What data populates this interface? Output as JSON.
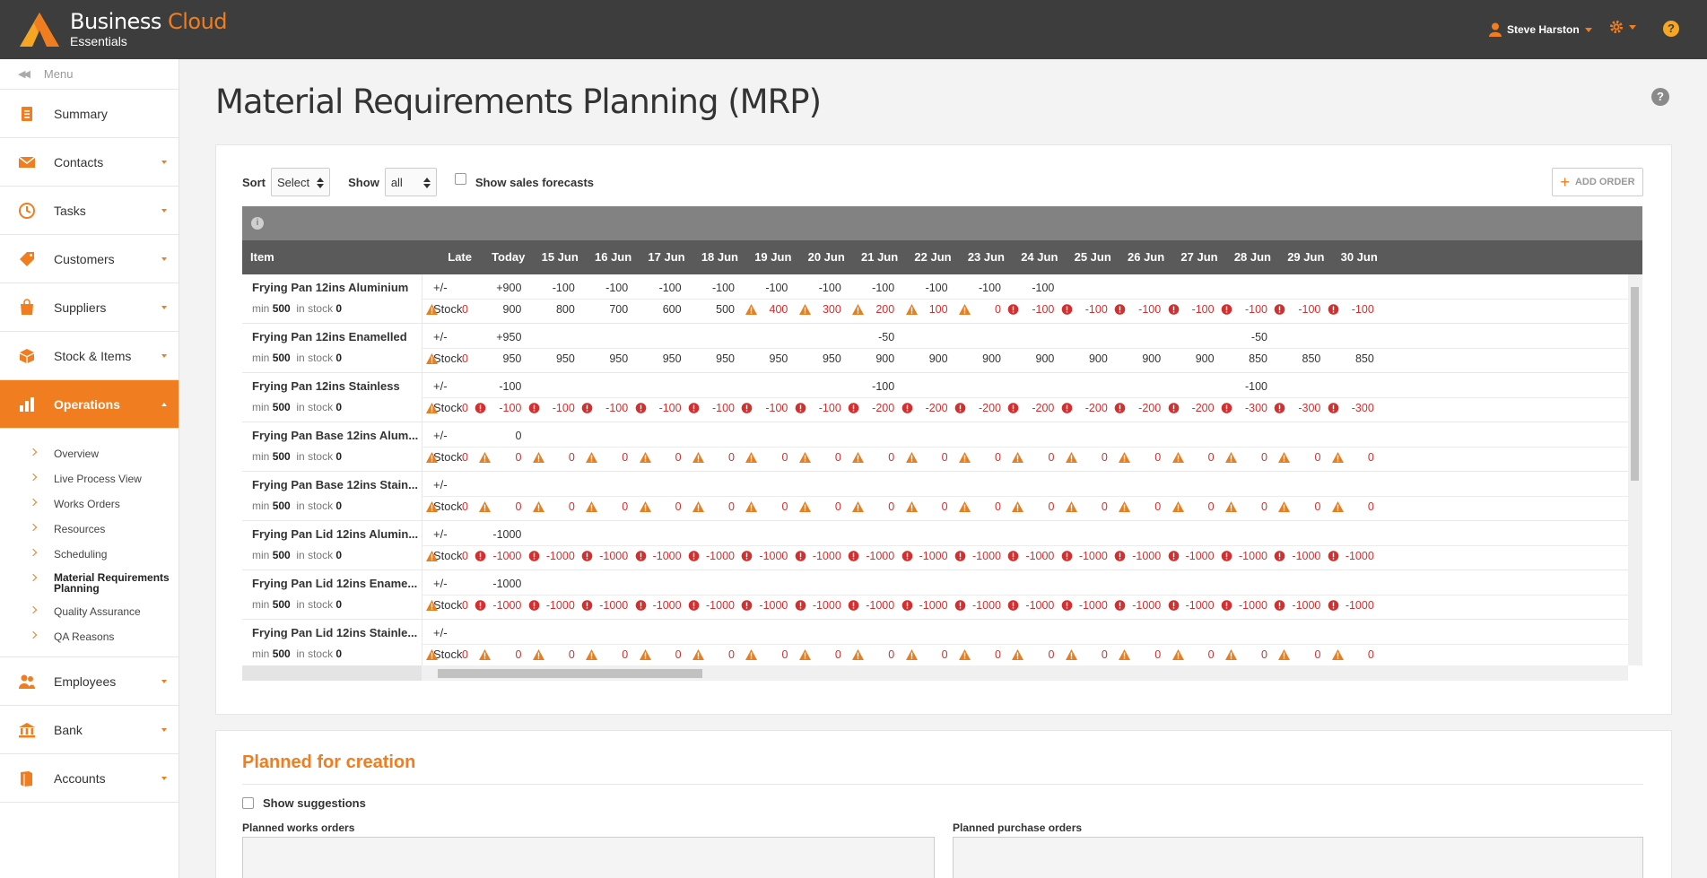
{
  "brand": {
    "name_part1": "Business",
    "name_part2": "Cloud",
    "subtitle": "Essentials"
  },
  "user": {
    "name": "Steve Harston"
  },
  "sidebar": {
    "menu_label": "Menu",
    "items": [
      {
        "label": "Summary",
        "icon": "summary-icon",
        "expandable": false
      },
      {
        "label": "Contacts",
        "icon": "envelope-icon",
        "expandable": true
      },
      {
        "label": "Tasks",
        "icon": "clock-icon",
        "expandable": true
      },
      {
        "label": "Customers",
        "icon": "tag-icon",
        "expandable": true
      },
      {
        "label": "Suppliers",
        "icon": "bag-icon",
        "expandable": true
      },
      {
        "label": "Stock & Items",
        "icon": "box-icon",
        "expandable": true
      },
      {
        "label": "Operations",
        "icon": "bar-chart-icon",
        "expandable": true,
        "active": true
      },
      {
        "label": "Employees",
        "icon": "people-icon",
        "expandable": true
      },
      {
        "label": "Bank",
        "icon": "bank-icon",
        "expandable": true
      },
      {
        "label": "Accounts",
        "icon": "book-icon",
        "expandable": true
      }
    ],
    "operations_sub": [
      "Overview",
      "Live Process View",
      "Works Orders",
      "Resources",
      "Scheduling",
      "Material Requirements Planning",
      "Quality Assurance",
      "QA Reasons"
    ],
    "current_sub": "Material Requirements Planning"
  },
  "page": {
    "title": "Material Requirements Planning (MRP)"
  },
  "controls": {
    "sort_label": "Sort",
    "sort_value": "Select",
    "show_label": "Show",
    "show_value": "all",
    "forecast_label": "Show sales forecasts",
    "add_order_label": "ADD ORDER"
  },
  "grid": {
    "headers": [
      "Item",
      "Late",
      "Today",
      "15 Jun",
      "16 Jun",
      "17 Jun",
      "18 Jun",
      "19 Jun",
      "20 Jun",
      "21 Jun",
      "22 Jun",
      "23 Jun",
      "24 Jun",
      "25 Jun",
      "26 Jun",
      "27 Jun",
      "28 Jun",
      "29 Jun",
      "30 Jun"
    ],
    "min_label": "min",
    "instock_label": "in stock",
    "pm_label": "+/-",
    "stock_label": "Stock",
    "rows": [
      {
        "name": "Frying Pan 12ins Aluminium",
        "min": "500",
        "in_stock": "0",
        "pm": [
          "",
          "+900",
          "-100",
          "-100",
          "-100",
          "-100",
          "-100",
          "-100",
          "-100",
          "-100",
          "-100",
          "-100",
          "",
          "",
          "",
          "",
          "",
          ""
        ],
        "stock": [
          [
            "warn",
            "0"
          ],
          [
            "",
            "900"
          ],
          [
            "",
            "800"
          ],
          [
            "",
            "700"
          ],
          [
            "",
            "600"
          ],
          [
            "",
            "500"
          ],
          [
            "warn",
            "400"
          ],
          [
            "warn",
            "300"
          ],
          [
            "warn",
            "200"
          ],
          [
            "warn",
            "100"
          ],
          [
            "warn",
            "0"
          ],
          [
            "err",
            "-100"
          ],
          [
            "err",
            "-100"
          ],
          [
            "err",
            "-100"
          ],
          [
            "err",
            "-100"
          ],
          [
            "err",
            "-100"
          ],
          [
            "err",
            "-100"
          ],
          [
            "err",
            "-100"
          ]
        ]
      },
      {
        "name": "Frying Pan 12ins Enamelled",
        "min": "500",
        "in_stock": "0",
        "pm": [
          "",
          "+950",
          "",
          "",
          "",
          "",
          "",
          "",
          "-50",
          "",
          "",
          "",
          "",
          "",
          "",
          "-50",
          "",
          ""
        ],
        "stock": [
          [
            "warn",
            "0"
          ],
          [
            "",
            "950"
          ],
          [
            "",
            "950"
          ],
          [
            "",
            "950"
          ],
          [
            "",
            "950"
          ],
          [
            "",
            "950"
          ],
          [
            "",
            "950"
          ],
          [
            "",
            "950"
          ],
          [
            "",
            "900"
          ],
          [
            "",
            "900"
          ],
          [
            "",
            "900"
          ],
          [
            "",
            "900"
          ],
          [
            "",
            "900"
          ],
          [
            "",
            "900"
          ],
          [
            "",
            "900"
          ],
          [
            "",
            "850"
          ],
          [
            "",
            "850"
          ],
          [
            "",
            "850"
          ]
        ]
      },
      {
        "name": "Frying Pan 12ins Stainless",
        "min": "500",
        "in_stock": "0",
        "pm": [
          "",
          "-100",
          "",
          "",
          "",
          "",
          "",
          "",
          "-100",
          "",
          "",
          "",
          "",
          "",
          "",
          "-100",
          "",
          ""
        ],
        "stock": [
          [
            "warn",
            "0"
          ],
          [
            "err",
            "-100"
          ],
          [
            "err",
            "-100"
          ],
          [
            "err",
            "-100"
          ],
          [
            "err",
            "-100"
          ],
          [
            "err",
            "-100"
          ],
          [
            "err",
            "-100"
          ],
          [
            "err",
            "-100"
          ],
          [
            "err",
            "-200"
          ],
          [
            "err",
            "-200"
          ],
          [
            "err",
            "-200"
          ],
          [
            "err",
            "-200"
          ],
          [
            "err",
            "-200"
          ],
          [
            "err",
            "-200"
          ],
          [
            "err",
            "-200"
          ],
          [
            "err",
            "-300"
          ],
          [
            "err",
            "-300"
          ],
          [
            "err",
            "-300"
          ]
        ]
      },
      {
        "name": "Frying Pan Base 12ins Alum...",
        "min": "500",
        "in_stock": "0",
        "pm": [
          "",
          "0",
          "",
          "",
          "",
          "",
          "",
          "",
          "",
          "",
          "",
          "",
          "",
          "",
          "",
          "",
          "",
          ""
        ],
        "stock": [
          [
            "warn",
            "0"
          ],
          [
            "warn",
            "0"
          ],
          [
            "warn",
            "0"
          ],
          [
            "warn",
            "0"
          ],
          [
            "warn",
            "0"
          ],
          [
            "warn",
            "0"
          ],
          [
            "warn",
            "0"
          ],
          [
            "warn",
            "0"
          ],
          [
            "warn",
            "0"
          ],
          [
            "warn",
            "0"
          ],
          [
            "warn",
            "0"
          ],
          [
            "warn",
            "0"
          ],
          [
            "warn",
            "0"
          ],
          [
            "warn",
            "0"
          ],
          [
            "warn",
            "0"
          ],
          [
            "warn",
            "0"
          ],
          [
            "warn",
            "0"
          ],
          [
            "warn",
            "0"
          ]
        ]
      },
      {
        "name": "Frying Pan Base 12ins Stain...",
        "min": "500",
        "in_stock": "0",
        "pm": [
          "",
          "",
          "",
          "",
          "",
          "",
          "",
          "",
          "",
          "",
          "",
          "",
          "",
          "",
          "",
          "",
          "",
          ""
        ],
        "stock": [
          [
            "warn",
            "0"
          ],
          [
            "warn",
            "0"
          ],
          [
            "warn",
            "0"
          ],
          [
            "warn",
            "0"
          ],
          [
            "warn",
            "0"
          ],
          [
            "warn",
            "0"
          ],
          [
            "warn",
            "0"
          ],
          [
            "warn",
            "0"
          ],
          [
            "warn",
            "0"
          ],
          [
            "warn",
            "0"
          ],
          [
            "warn",
            "0"
          ],
          [
            "warn",
            "0"
          ],
          [
            "warn",
            "0"
          ],
          [
            "warn",
            "0"
          ],
          [
            "warn",
            "0"
          ],
          [
            "warn",
            "0"
          ],
          [
            "warn",
            "0"
          ],
          [
            "warn",
            "0"
          ]
        ]
      },
      {
        "name": "Frying Pan Lid 12ins Alumin...",
        "min": "500",
        "in_stock": "0",
        "pm": [
          "",
          "-1000",
          "",
          "",
          "",
          "",
          "",
          "",
          "",
          "",
          "",
          "",
          "",
          "",
          "",
          "",
          "",
          ""
        ],
        "stock": [
          [
            "warn",
            "0"
          ],
          [
            "err",
            "-1000"
          ],
          [
            "err",
            "-1000"
          ],
          [
            "err",
            "-1000"
          ],
          [
            "err",
            "-1000"
          ],
          [
            "err",
            "-1000"
          ],
          [
            "err",
            "-1000"
          ],
          [
            "err",
            "-1000"
          ],
          [
            "err",
            "-1000"
          ],
          [
            "err",
            "-1000"
          ],
          [
            "err",
            "-1000"
          ],
          [
            "err",
            "-1000"
          ],
          [
            "err",
            "-1000"
          ],
          [
            "err",
            "-1000"
          ],
          [
            "err",
            "-1000"
          ],
          [
            "err",
            "-1000"
          ],
          [
            "err",
            "-1000"
          ],
          [
            "err",
            "-1000"
          ]
        ]
      },
      {
        "name": "Frying Pan Lid 12ins Ename...",
        "min": "500",
        "in_stock": "0",
        "pm": [
          "",
          "-1000",
          "",
          "",
          "",
          "",
          "",
          "",
          "",
          "",
          "",
          "",
          "",
          "",
          "",
          "",
          "",
          ""
        ],
        "stock": [
          [
            "warn",
            "0"
          ],
          [
            "err",
            "-1000"
          ],
          [
            "err",
            "-1000"
          ],
          [
            "err",
            "-1000"
          ],
          [
            "err",
            "-1000"
          ],
          [
            "err",
            "-1000"
          ],
          [
            "err",
            "-1000"
          ],
          [
            "err",
            "-1000"
          ],
          [
            "err",
            "-1000"
          ],
          [
            "err",
            "-1000"
          ],
          [
            "err",
            "-1000"
          ],
          [
            "err",
            "-1000"
          ],
          [
            "err",
            "-1000"
          ],
          [
            "err",
            "-1000"
          ],
          [
            "err",
            "-1000"
          ],
          [
            "err",
            "-1000"
          ],
          [
            "err",
            "-1000"
          ],
          [
            "err",
            "-1000"
          ]
        ]
      },
      {
        "name": "Frying Pan Lid 12ins Stainle...",
        "min": "500",
        "in_stock": "0",
        "pm": [
          "",
          "",
          "",
          "",
          "",
          "",
          "",
          "",
          "",
          "",
          "",
          "",
          "",
          "",
          "",
          "",
          "",
          ""
        ],
        "stock": [
          [
            "warn",
            "0"
          ],
          [
            "warn",
            "0"
          ],
          [
            "warn",
            "0"
          ],
          [
            "warn",
            "0"
          ],
          [
            "warn",
            "0"
          ],
          [
            "warn",
            "0"
          ],
          [
            "warn",
            "0"
          ],
          [
            "warn",
            "0"
          ],
          [
            "warn",
            "0"
          ],
          [
            "warn",
            "0"
          ],
          [
            "warn",
            "0"
          ],
          [
            "warn",
            "0"
          ],
          [
            "warn",
            "0"
          ],
          [
            "warn",
            "0"
          ],
          [
            "warn",
            "0"
          ],
          [
            "warn",
            "0"
          ],
          [
            "warn",
            "0"
          ],
          [
            "warn",
            "0"
          ]
        ]
      }
    ]
  },
  "planned": {
    "title": "Planned for creation",
    "show_suggestions": "Show suggestions",
    "works_orders_label": "Planned works orders",
    "purchase_orders_label": "Planned purchase orders"
  },
  "colors": {
    "accent": "#f07d1f",
    "topbar": "#3d3d3d",
    "error": "#d32f2f",
    "warning": "#e67e22"
  }
}
